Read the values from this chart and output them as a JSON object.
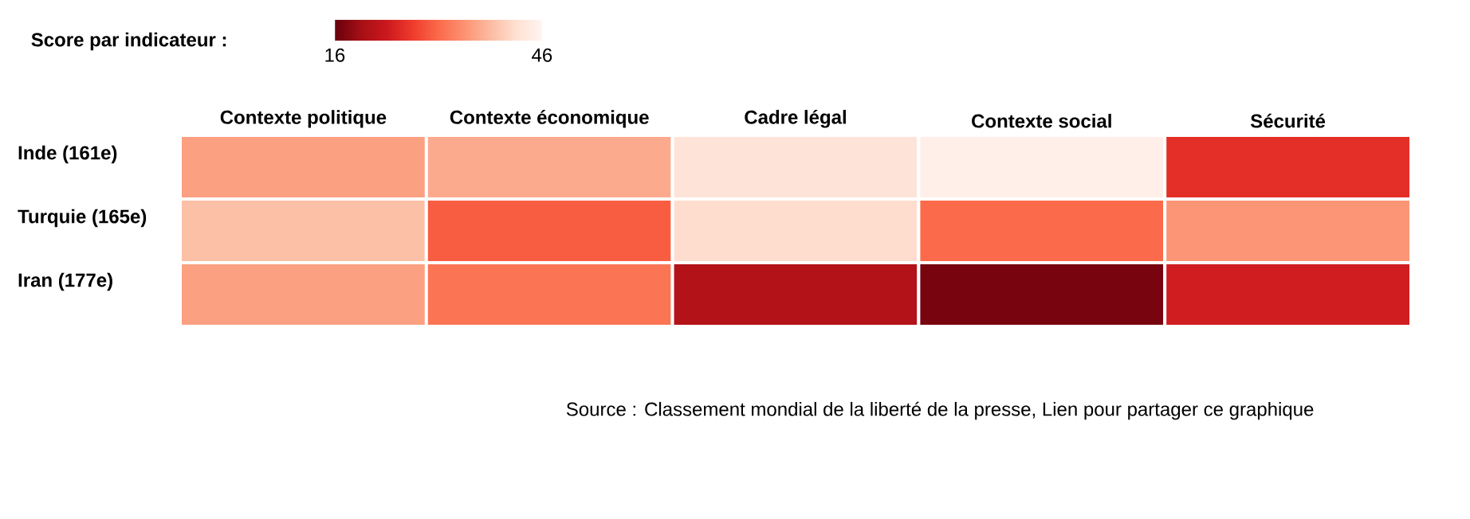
{
  "chart_data": {
    "type": "heatmap",
    "clabel": "Score par indicateur :",
    "categories": [
      "Contexte politique",
      "Contexte économique",
      "Cadre légal",
      "Contexte social",
      "Sécurité"
    ],
    "y_categories": [
      "Inde (161e)",
      "Turquie (165e)",
      "Iran (177e)"
    ],
    "cells": [
      [
        36,
        37,
        43,
        45,
        26
      ],
      [
        39,
        30,
        42,
        31,
        35
      ],
      [
        36,
        32,
        21,
        17,
        24
      ]
    ],
    "clim": [
      16,
      46
    ],
    "cticks": [
      16,
      46
    ],
    "annotations": [
      "Source : Classement mondial de la liberté de la presse, Lien pour partager ce graphique"
    ]
  }
}
